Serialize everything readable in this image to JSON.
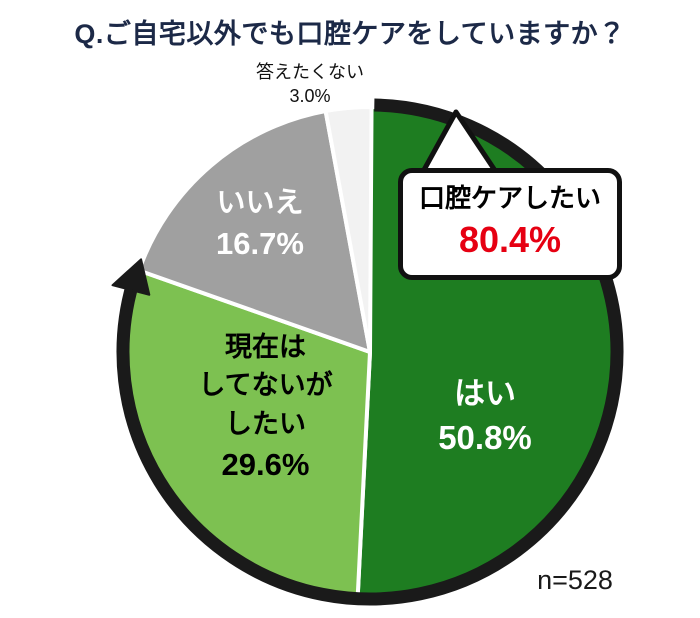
{
  "chart_data": {
    "type": "pie",
    "title": "Q.ご自宅以外でも口腔ケアをしていますか？",
    "sample_size_label": "n=528",
    "start_angle_deg": 0,
    "direction": "clockwise",
    "legend_position": "none",
    "slices": [
      {
        "id": "yes",
        "label": "はい",
        "value": 50.8,
        "value_label": "50.8%",
        "color": "#1e7d21",
        "text_color": "#ffffff"
      },
      {
        "id": "want-to",
        "label": "現在はしてないがしたい",
        "label_lines": [
          "現在は",
          "してないが",
          "したい"
        ],
        "value": 29.6,
        "value_label": "29.6%",
        "color": "#7dc151",
        "text_color": "#000000"
      },
      {
        "id": "no",
        "label": "いいえ",
        "value": 16.7,
        "value_label": "16.7%",
        "color": "#a0a0a0",
        "text_color": "#ffffff"
      },
      {
        "id": "no-answer",
        "label": "答えたくない",
        "value": 3.0,
        "value_label": "3.0%",
        "color": "#f2f2f2",
        "text_color": "#000000"
      }
    ],
    "callout": {
      "label": "口腔ケアしたい",
      "value": 80.4,
      "value_label": "80.4%",
      "value_color": "#e60012",
      "covers": [
        "yes",
        "want-to"
      ]
    },
    "arrow": {
      "color": "#1a1a1a",
      "from_pct": 0.0,
      "to_pct": 80.4
    }
  }
}
